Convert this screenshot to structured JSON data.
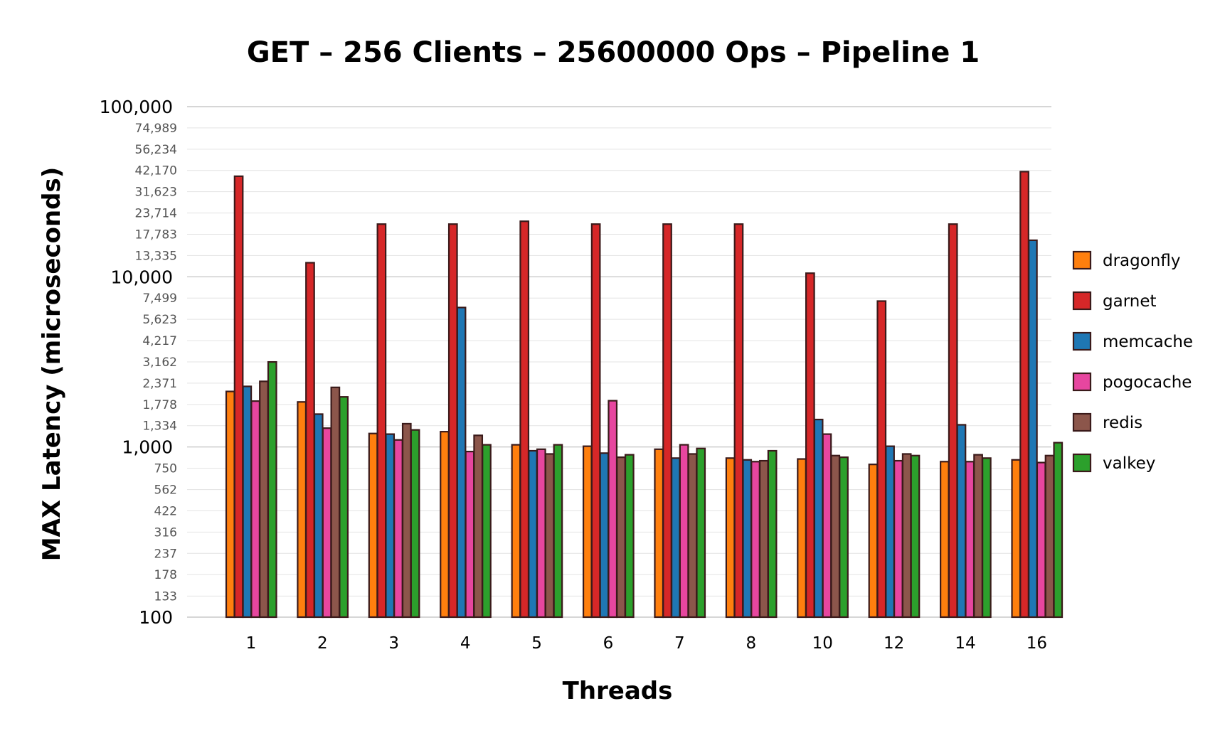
{
  "chart_data": {
    "type": "bar",
    "title": "GET – 256 Clients – 25600000 Ops – Pipeline 1",
    "xlabel": "Threads",
    "ylabel": "MAX Latency (microseconds)",
    "yscale": "log",
    "ylim": [
      100,
      100000
    ],
    "yticks_major": [
      "100",
      "1,000",
      "10,000",
      "100,000"
    ],
    "yticks_minor": [
      "133",
      "178",
      "237",
      "316",
      "422",
      "562",
      "750",
      "1,334",
      "1,778",
      "2,371",
      "3,162",
      "4,217",
      "5,623",
      "7,499",
      "13,335",
      "17,783",
      "23,714",
      "31,623",
      "42,170",
      "56,234",
      "74,989"
    ],
    "categories": [
      "1",
      "2",
      "3",
      "4",
      "5",
      "6",
      "7",
      "8",
      "10",
      "12",
      "14",
      "16"
    ],
    "legend_position": "right",
    "series": [
      {
        "name": "dragonfly",
        "color": "#ff7f0e",
        "values": [
          2120,
          1840,
          1200,
          1230,
          1030,
          1010,
          970,
          860,
          850,
          790,
          820,
          840
        ]
      },
      {
        "name": "garnet",
        "color": "#d62728",
        "values": [
          39000,
          12100,
          20400,
          20400,
          21200,
          20400,
          20400,
          20400,
          10500,
          7200,
          20400,
          41500
        ]
      },
      {
        "name": "memcache",
        "color": "#1f77b4",
        "values": [
          2270,
          1560,
          1190,
          6600,
          950,
          920,
          860,
          840,
          1450,
          1010,
          1350,
          16400
        ]
      },
      {
        "name": "pogocache",
        "color": "#e7469f",
        "values": [
          1860,
          1290,
          1100,
          940,
          970,
          1870,
          1030,
          820,
          1190,
          830,
          820,
          810
        ]
      },
      {
        "name": "redis",
        "color": "#8c564b",
        "values": [
          2430,
          2240,
          1370,
          1170,
          910,
          870,
          910,
          830,
          890,
          910,
          900,
          890
        ]
      },
      {
        "name": "valkey",
        "color": "#2ca02c",
        "values": [
          3160,
          1970,
          1260,
          1030,
          1030,
          900,
          980,
          950,
          870,
          890,
          860,
          1060
        ]
      }
    ]
  }
}
